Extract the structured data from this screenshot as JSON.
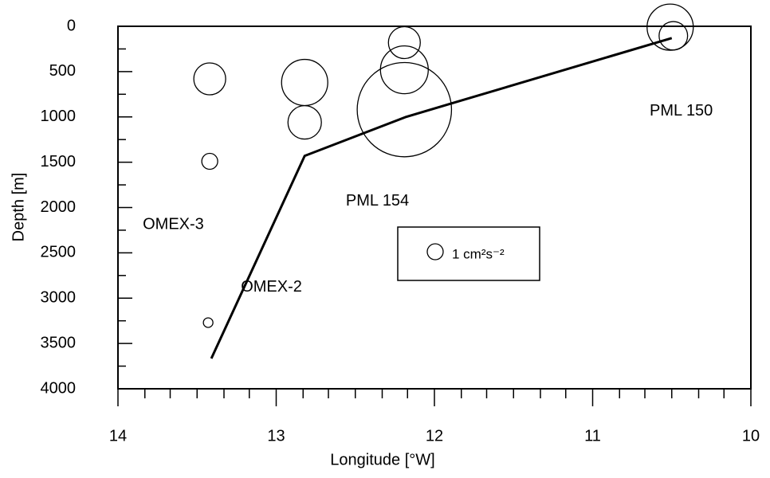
{
  "chart_data": {
    "type": "scatter",
    "xlabel": "Longitude [°W]",
    "ylabel": "Depth [m]",
    "xlim": [
      14,
      10
    ],
    "xticks": [
      14,
      13,
      12,
      11,
      10
    ],
    "xminorticks": [
      13.83,
      13.67,
      13.5,
      13.33,
      13.17,
      12.83,
      12.67,
      12.5,
      12.33,
      12.17,
      11.83,
      11.67,
      11.5,
      11.33,
      11.17,
      10.83,
      10.67,
      10.5,
      10.33,
      10.17
    ],
    "ylim": [
      0,
      4000
    ],
    "y_inverted": true,
    "yticks": [
      0,
      500,
      1000,
      1500,
      2000,
      2500,
      3000,
      3500,
      4000
    ],
    "yminorticks": [
      250,
      750,
      1250,
      1750,
      2250,
      2750,
      3250,
      3750
    ],
    "bubbles": {
      "x": [
        13.42,
        13.42,
        13.43,
        12.82,
        12.82,
        12.19,
        12.19,
        12.19,
        10.51,
        10.49
      ],
      "y": [
        580,
        1490,
        3270,
        620,
        1060,
        180,
        480,
        920,
        10,
        105
      ],
      "sizes": [
        4,
        1,
        0.36,
        8.4,
        4.4,
        4,
        9,
        35,
        8.4,
        3.2
      ]
    },
    "line": {
      "x": [
        13.41,
        12.82,
        12.18,
        10.5
      ],
      "y": [
        3666,
        1430,
        1000,
        130
      ]
    },
    "annotations": [
      {
        "text": "OMEX-3",
        "x": 13.65,
        "y": 2190
      },
      {
        "text": "OMEX-2",
        "x": 13.03,
        "y": 2880
      },
      {
        "text": "PML 154",
        "x": 12.36,
        "y": 1930
      },
      {
        "text": "PML 150",
        "x": 10.44,
        "y": 940
      }
    ],
    "legend": {
      "label": "1 cm²s⁻²",
      "size": 1
    }
  }
}
